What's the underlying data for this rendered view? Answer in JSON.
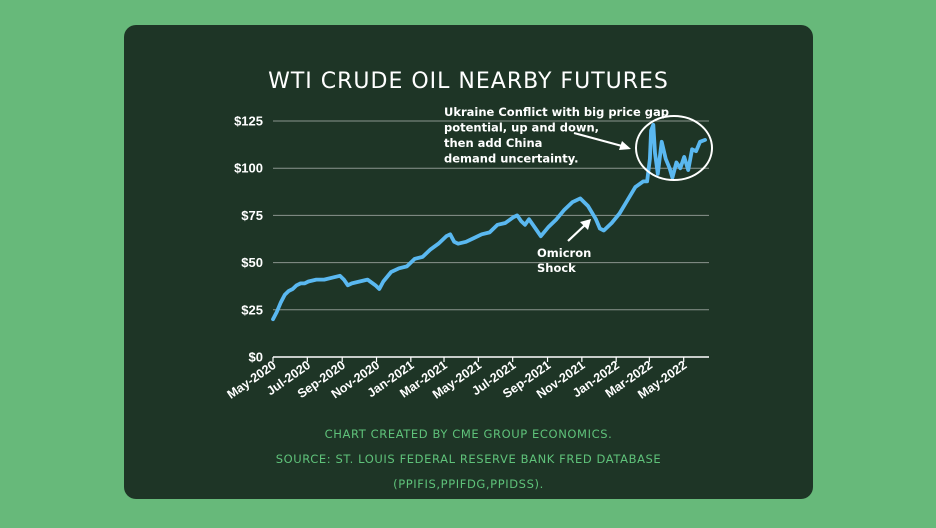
{
  "title": "WTI CRUDE OIL NEARBY FUTURES",
  "footer": {
    "line1": "CHART CREATED BY CME GROUP ECONOMICS.",
    "line2": "SOURCE: ST. LOUIS FEDERAL RESERVE BANK FRED DATABASE",
    "line3": "(PPIFIS,PPIFDG,PPIDSS)."
  },
  "colors": {
    "background": "#67b97a",
    "card": "#1e3526",
    "line": "#5ab8f0",
    "footer_text": "#5fc27a"
  },
  "chart_data": {
    "type": "line",
    "title": "WTI CRUDE OIL NEARBY FUTURES",
    "xlabel": "",
    "ylabel": "",
    "ylim": [
      0,
      125
    ],
    "yticks": [
      0,
      25,
      50,
      75,
      100,
      125
    ],
    "ytick_labels": [
      "$0",
      "$25",
      "$50",
      "$75",
      "$100",
      "$125"
    ],
    "x_range": [
      "2020-05-01",
      "2022-06-15"
    ],
    "xtick_labels": [
      "May-2020",
      "Jul-2020",
      "Sep-2020",
      "Nov-2020",
      "Jan-2021",
      "Mar-2021",
      "May-2021",
      "Jul-2021",
      "Sep-2021",
      "Nov-2021",
      "Jan-2022",
      "Mar-2022",
      "May-2022"
    ],
    "xtick_dates": [
      "2020-05-01",
      "2020-07-01",
      "2020-09-01",
      "2020-11-01",
      "2021-01-01",
      "2021-03-01",
      "2021-05-01",
      "2021-07-01",
      "2021-09-01",
      "2021-11-01",
      "2022-01-01",
      "2022-03-01",
      "2022-05-01"
    ],
    "grid": true,
    "series": [
      {
        "x": [
          "2020-05-01",
          "2020-05-08",
          "2020-05-15",
          "2020-05-22",
          "2020-05-29",
          "2020-06-05",
          "2020-06-12",
          "2020-06-19",
          "2020-06-26",
          "2020-07-03",
          "2020-07-17",
          "2020-07-31",
          "2020-08-14",
          "2020-08-28",
          "2020-09-04",
          "2020-09-11",
          "2020-09-18",
          "2020-10-02",
          "2020-10-16",
          "2020-10-30",
          "2020-11-06",
          "2020-11-13",
          "2020-11-27",
          "2020-12-11",
          "2020-12-25",
          "2021-01-08",
          "2021-01-22",
          "2021-02-05",
          "2021-02-19",
          "2021-03-05",
          "2021-03-12",
          "2021-03-19",
          "2021-03-26",
          "2021-04-09",
          "2021-04-23",
          "2021-05-07",
          "2021-05-21",
          "2021-06-04",
          "2021-06-18",
          "2021-07-02",
          "2021-07-09",
          "2021-07-16",
          "2021-07-23",
          "2021-07-30",
          "2021-08-13",
          "2021-08-20",
          "2021-09-03",
          "2021-09-17",
          "2021-10-01",
          "2021-10-15",
          "2021-10-29",
          "2021-11-12",
          "2021-11-26",
          "2021-12-03",
          "2021-12-10",
          "2021-12-24",
          "2022-01-07",
          "2022-01-21",
          "2022-02-04",
          "2022-02-18",
          "2022-02-25",
          "2022-03-02",
          "2022-03-04",
          "2022-03-08",
          "2022-03-11",
          "2022-03-16",
          "2022-03-23",
          "2022-03-30",
          "2022-04-06",
          "2022-04-11",
          "2022-04-18",
          "2022-04-25",
          "2022-05-02",
          "2022-05-09",
          "2022-05-16",
          "2022-05-23",
          "2022-05-30",
          "2022-06-08"
        ],
        "values": [
          20,
          24,
          29,
          33,
          35,
          36,
          38,
          39,
          39,
          40,
          41,
          41,
          42,
          43,
          41,
          38,
          39,
          40,
          41,
          38,
          36,
          40,
          45,
          47,
          48,
          52,
          53,
          57,
          60,
          64,
          65,
          61,
          60,
          61,
          63,
          65,
          66,
          70,
          71,
          74,
          75,
          72,
          70,
          73,
          67,
          64,
          69,
          73,
          78,
          82,
          84,
          80,
          73,
          68,
          67,
          71,
          76,
          83,
          90,
          93,
          93,
          105,
          120,
          123,
          108,
          97,
          114,
          105,
          100,
          95,
          103,
          100,
          106,
          99,
          110,
          109,
          114,
          115
        ]
      }
    ],
    "annotations": [
      {
        "lines": [
          "Ukraine Conflict with big price gap",
          "potential, up and down,",
          "then add China",
          "demand uncertainty."
        ]
      },
      {
        "lines": [
          "Omicron",
          "Shock"
        ]
      }
    ]
  }
}
